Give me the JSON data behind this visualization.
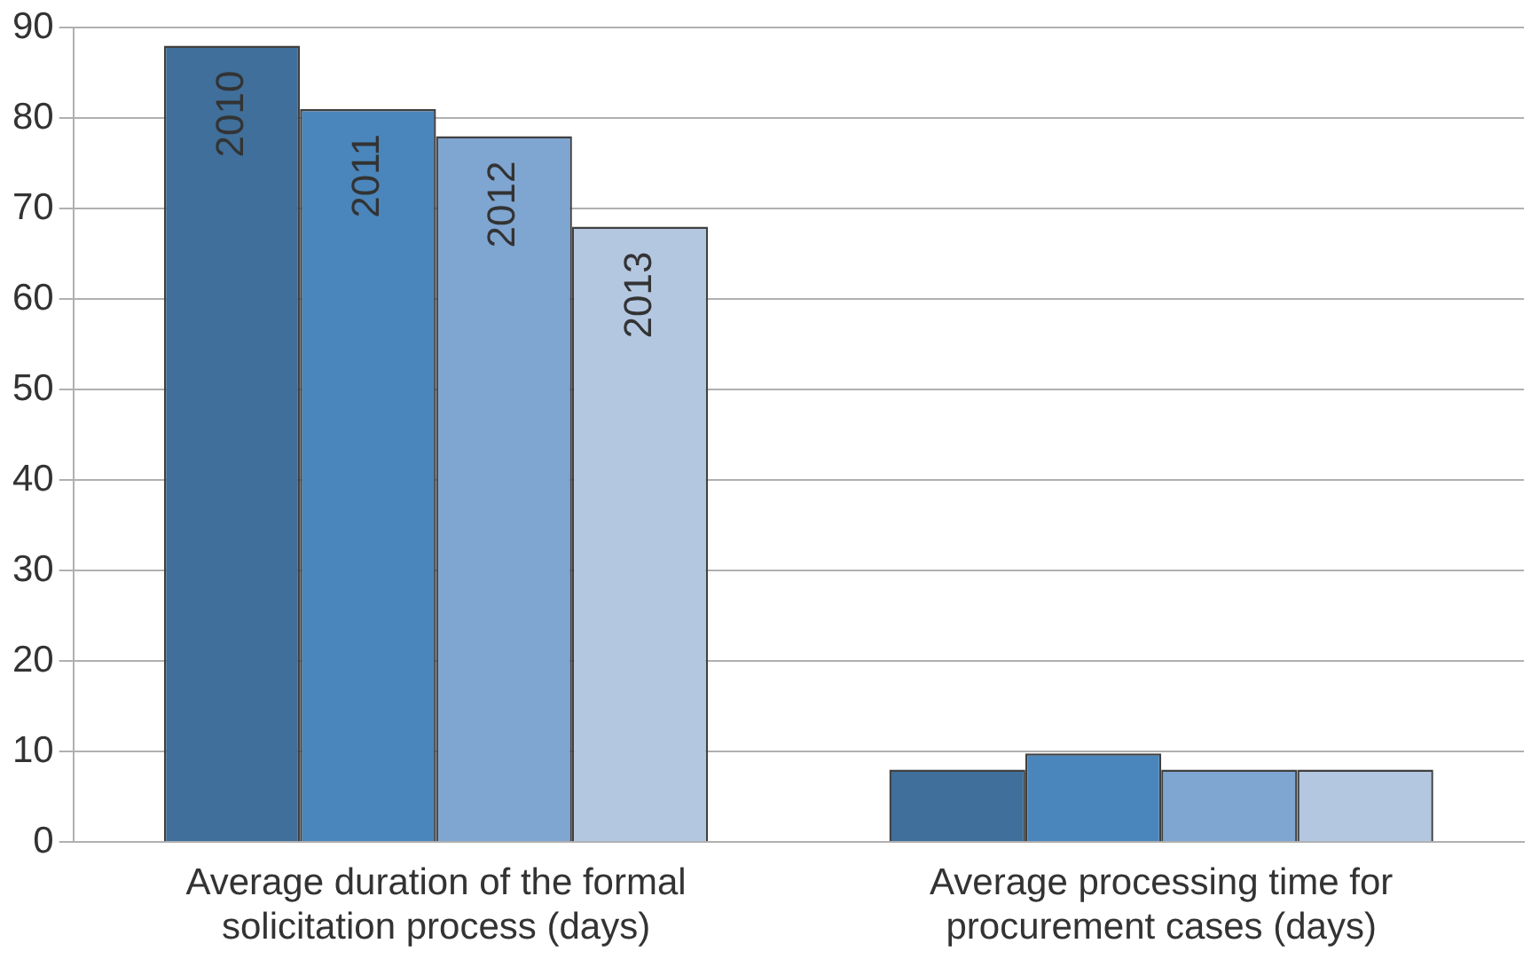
{
  "chart_data": {
    "type": "bar",
    "categories": [
      "Average duration of the formal solicitation process (days)",
      "Average processing time for procurement cases (days)"
    ],
    "series": [
      {
        "name": "2010",
        "color": "#3f6f9a",
        "values": [
          88,
          8
        ]
      },
      {
        "name": "2011",
        "color": "#4a86bb",
        "values": [
          81,
          9.8
        ]
      },
      {
        "name": "2012",
        "color": "#7fa5d1",
        "values": [
          78,
          8
        ]
      },
      {
        "name": "2013",
        "color": "#b3c7e1",
        "values": [
          68,
          8
        ]
      }
    ],
    "ylim": [
      0,
      90
    ],
    "yticks": [
      0,
      10,
      20,
      30,
      40,
      50,
      60,
      70,
      80,
      90
    ],
    "grid": "y",
    "legend": false
  }
}
